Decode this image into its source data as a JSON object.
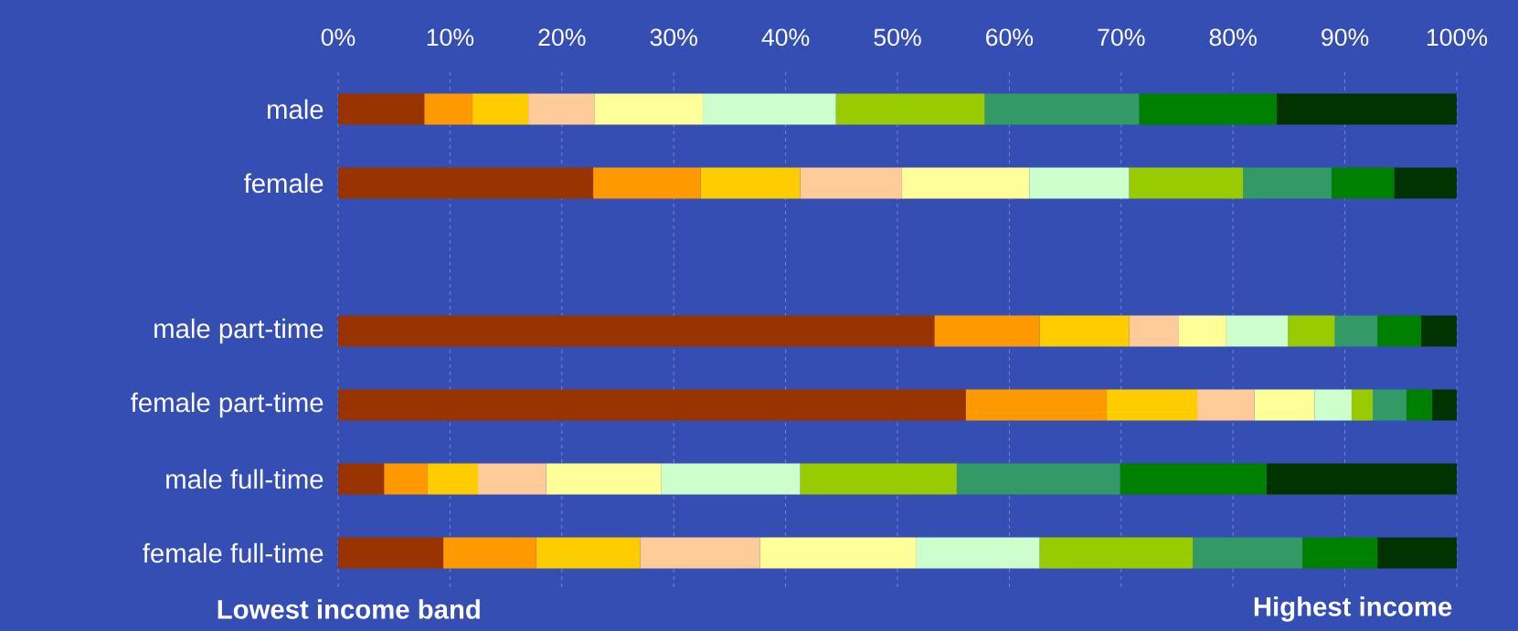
{
  "chart_data": {
    "type": "bar",
    "orientation": "horizontal",
    "stacked": true,
    "grid": "x",
    "categories": [
      "male",
      "female",
      null,
      "male part-time",
      "female part-time",
      "male full-time",
      "female full-time"
    ],
    "xlim": [
      0,
      100
    ],
    "xticks": [
      {
        "value": 0,
        "label": "0%"
      },
      {
        "value": 10,
        "label": "10%"
      },
      {
        "value": 20,
        "label": "20%"
      },
      {
        "value": 30,
        "label": "30%"
      },
      {
        "value": 40,
        "label": "40%"
      },
      {
        "value": 50,
        "label": "50%"
      },
      {
        "value": 60,
        "label": "60%"
      },
      {
        "value": 70,
        "label": "70%"
      },
      {
        "value": 80,
        "label": "80%"
      },
      {
        "value": 90,
        "label": "90%"
      },
      {
        "value": 100,
        "label": "100%"
      }
    ],
    "series": [
      {
        "color": "#993300",
        "values": [
          7.7,
          22.8,
          null,
          53.3,
          56.1,
          4.1,
          9.4
        ]
      },
      {
        "color": "#ff9900",
        "values": [
          4.3,
          9.6,
          null,
          9.4,
          12.6,
          3.9,
          8.3
        ]
      },
      {
        "color": "#ffcc00",
        "values": [
          5.0,
          8.9,
          null,
          8.0,
          8.1,
          4.5,
          9.3
        ]
      },
      {
        "color": "#ffcc99",
        "values": [
          5.9,
          9.1,
          null,
          4.4,
          5.1,
          6.1,
          10.7
        ]
      },
      {
        "color": "#ffff99",
        "values": [
          9.7,
          11.4,
          null,
          4.3,
          5.4,
          10.3,
          14.0
        ]
      },
      {
        "color": "#ccffcc",
        "values": [
          11.9,
          8.9,
          null,
          5.5,
          3.3,
          12.4,
          11.0
        ]
      },
      {
        "color": "#99cc00",
        "values": [
          13.3,
          10.2,
          null,
          4.2,
          1.9,
          14.0,
          13.7
        ]
      },
      {
        "color": "#339966",
        "values": [
          13.8,
          7.9,
          null,
          3.8,
          3.0,
          14.6,
          9.8
        ]
      },
      {
        "color": "#008000",
        "values": [
          12.3,
          5.6,
          null,
          3.9,
          2.3,
          13.1,
          6.7
        ]
      },
      {
        "color": "#003300",
        "values": [
          16.1,
          5.6,
          null,
          3.2,
          2.2,
          17.0,
          7.1
        ]
      }
    ],
    "annotations": [
      "Lowest income band",
      "Highest income"
    ]
  }
}
